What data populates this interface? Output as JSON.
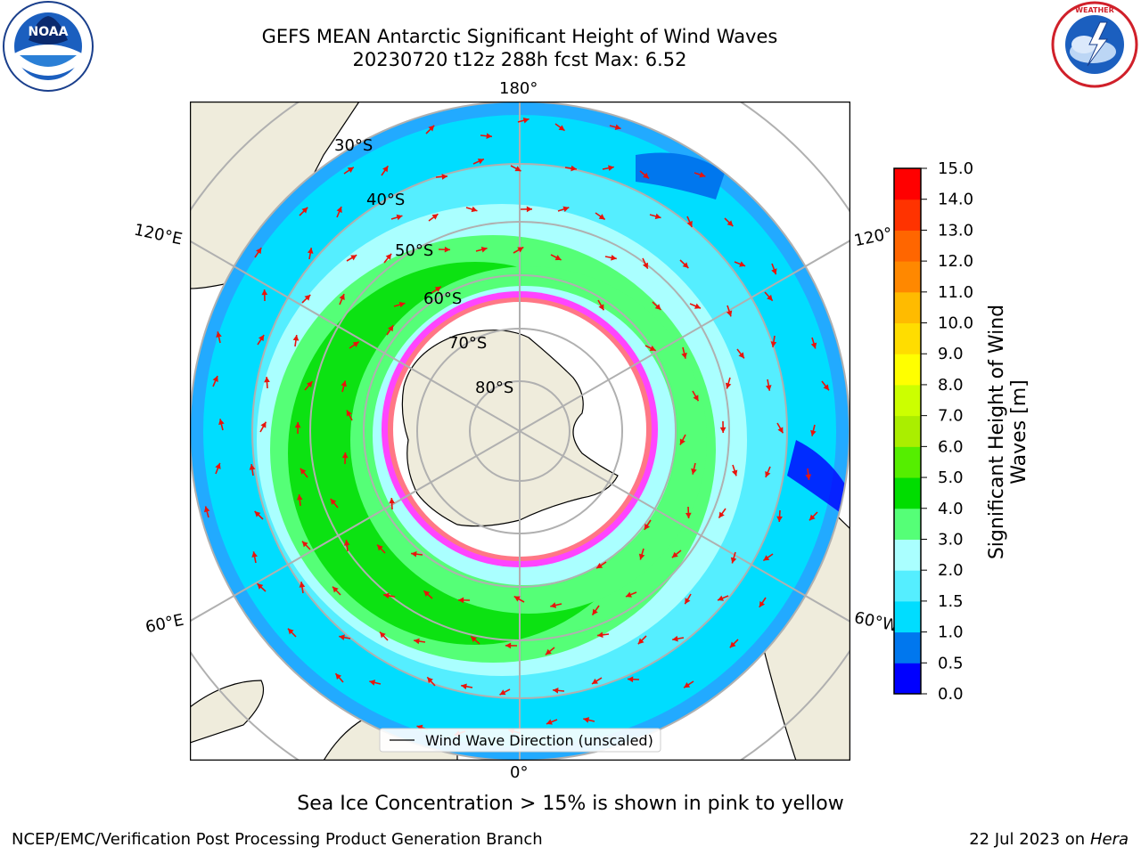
{
  "title": {
    "line1": "GEFS MEAN Antarctic Significant Height of Wind Waves",
    "line2": "20230720 t12z 288h fcst   Max: 6.52"
  },
  "map": {
    "projection": "south-polar-stereographic",
    "longitude_labels": [
      "180°",
      "120°E",
      "120°",
      "60°E",
      "60°W",
      "0°"
    ],
    "latitude_labels": [
      "30°S",
      "40°S",
      "50°S",
      "60°S",
      "70°S",
      "80°S"
    ],
    "legend_label": "Wind Wave Direction (unscaled)",
    "arrow_color": "#e8140c",
    "land_color": "#efecdc",
    "ice_colors": [
      "#ff44ff",
      "#ff9933",
      "#ffff66"
    ]
  },
  "colorbar": {
    "label_line1": "Significant Height of Wind",
    "label_line2": "Waves [m]",
    "ticks": [
      "0.0",
      "0.5",
      "1.0",
      "1.5",
      "2.0",
      "3.0",
      "4.0",
      "5.0",
      "6.0",
      "7.0",
      "8.0",
      "9.0",
      "10.0",
      "11.0",
      "12.0",
      "13.0",
      "14.0",
      "15.0"
    ],
    "colors": [
      "#0000ff",
      "#0077ee",
      "#00ddff",
      "#55eeff",
      "#aaffff",
      "#55ff77",
      "#00dd00",
      "#55ee00",
      "#aaee00",
      "#ccff00",
      "#ffff00",
      "#ffdd00",
      "#ffbb00",
      "#ff8800",
      "#ff6600",
      "#ff3300",
      "#ff0000"
    ]
  },
  "ice_note": "Sea Ice Concentration > 15% is shown in pink to yellow",
  "footer": {
    "left": "NCEP/EMC/Verification Post Processing Product Generation Branch",
    "right_date": "22 Jul 2023 on ",
    "right_host": "Hera"
  }
}
